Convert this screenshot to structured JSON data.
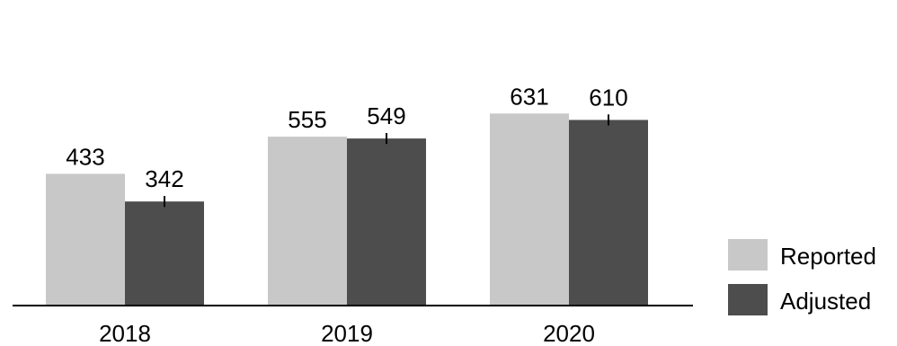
{
  "chart_data": {
    "type": "bar",
    "title": "",
    "xlabel": "",
    "ylabel": "",
    "categories": [
      "2018",
      "2019",
      "2020"
    ],
    "series": [
      {
        "name": "Reported",
        "values": [
          433,
          555,
          631
        ],
        "labels": [
          "433",
          "555",
          "631"
        ],
        "color": "#c8c8c8"
      },
      {
        "name": "Adjusted",
        "values": [
          342,
          549,
          610
        ],
        "labels": [
          "342",
          "549",
          "610"
        ],
        "color": "#4d4d4d"
      }
    ],
    "error_bars": {
      "series": "Adjusted",
      "values": [
        18,
        18,
        18
      ]
    },
    "ylim": [
      0,
      660
    ],
    "grid": false,
    "legend": {
      "position": "bottom-right",
      "entries": [
        "Reported",
        "Adjusted"
      ]
    }
  }
}
